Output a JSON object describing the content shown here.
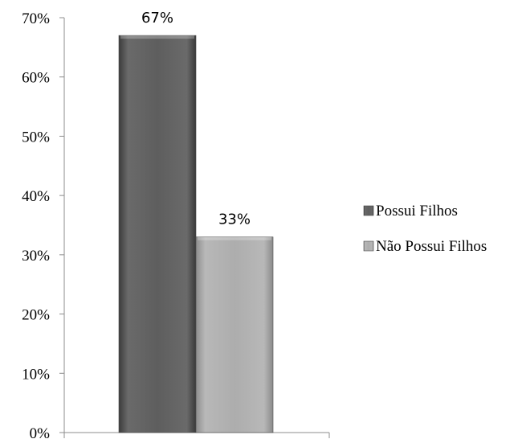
{
  "chart_data": {
    "type": "bar",
    "categories": [
      ""
    ],
    "series": [
      {
        "name": "Possui Filhos",
        "values": [
          67
        ],
        "label": "67%",
        "color": "#5a5a5a"
      },
      {
        "name": "Não Possui Filhos",
        "values": [
          33
        ],
        "label": "33%",
        "color": "#a9a9a9"
      }
    ],
    "ylim": [
      0,
      70
    ],
    "yticks": [
      "0%",
      "10%",
      "20%",
      "30%",
      "40%",
      "50%",
      "60%",
      "70%"
    ],
    "grid": false,
    "legend_position": "right"
  }
}
